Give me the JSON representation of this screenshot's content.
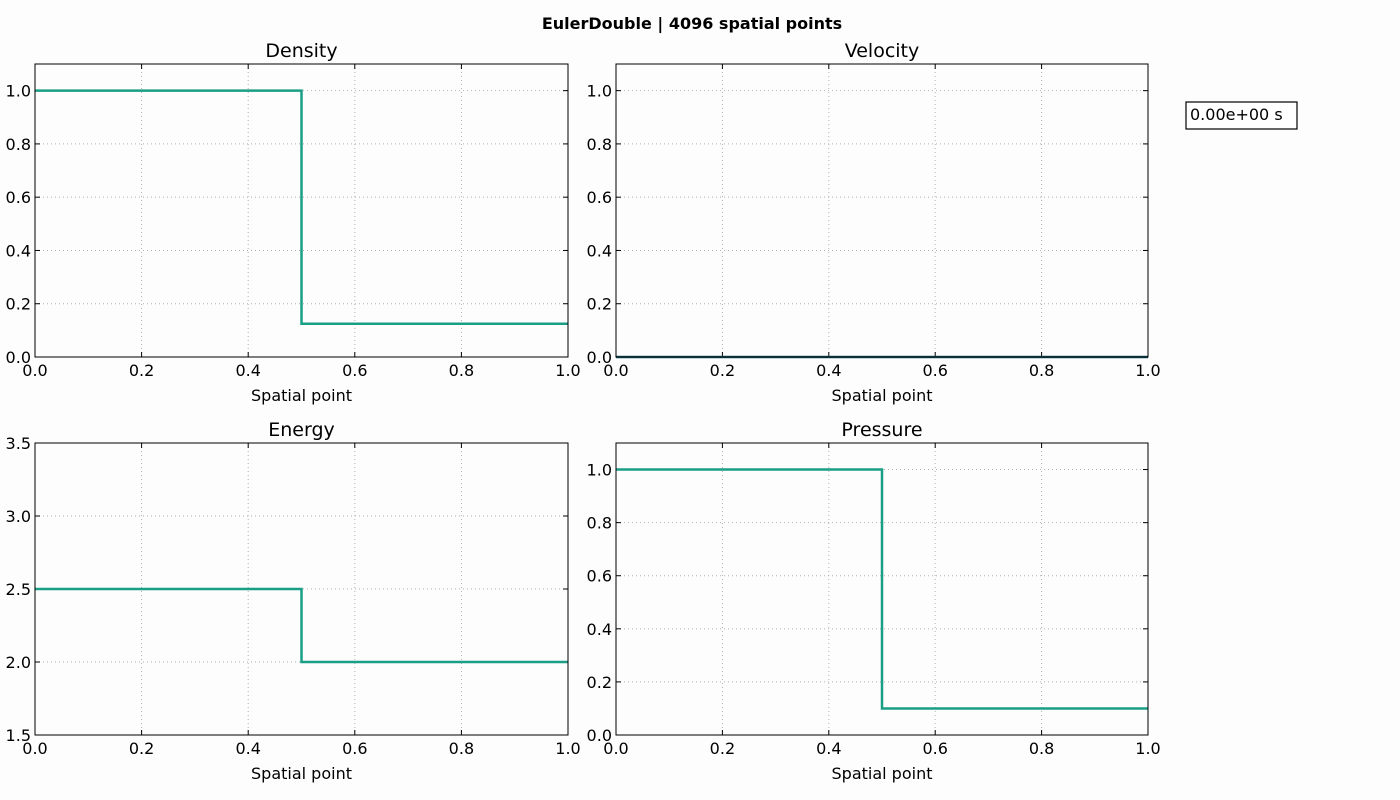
{
  "figure": {
    "title": "EulerDouble | 4096 spatial points",
    "time_label": "0.00e+00 s"
  },
  "colors": {
    "series": "#1a9e86",
    "velocity_series": "#1a5e6e"
  },
  "chart_data": [
    {
      "type": "line",
      "title": "Density",
      "xlabel": "Spatial point",
      "ylabel": "",
      "xlim": [
        0.0,
        1.0
      ],
      "ylim": [
        0.0,
        1.1
      ],
      "xticks": [
        "0.0",
        "0.2",
        "0.4",
        "0.6",
        "0.8",
        "1.0"
      ],
      "yticks": [
        "0.0",
        "0.2",
        "0.4",
        "0.6",
        "0.8",
        "1.0"
      ],
      "grid": true,
      "x": [
        0.0,
        0.5,
        0.5,
        1.0
      ],
      "y": [
        1.0,
        1.0,
        0.125,
        0.125
      ]
    },
    {
      "type": "line",
      "title": "Velocity",
      "xlabel": "Spatial point",
      "ylabel": "",
      "xlim": [
        0.0,
        1.0
      ],
      "ylim": [
        0.0,
        1.1
      ],
      "xticks": [
        "0.0",
        "0.2",
        "0.4",
        "0.6",
        "0.8",
        "1.0"
      ],
      "yticks": [
        "0.0",
        "0.2",
        "0.4",
        "0.6",
        "0.8",
        "1.0"
      ],
      "grid": true,
      "x": [
        0.0,
        1.0
      ],
      "y": [
        0.0,
        0.0
      ]
    },
    {
      "type": "line",
      "title": "Energy",
      "xlabel": "Spatial point",
      "ylabel": "",
      "xlim": [
        0.0,
        1.0
      ],
      "ylim": [
        1.5,
        3.5
      ],
      "xticks": [
        "0.0",
        "0.2",
        "0.4",
        "0.6",
        "0.8",
        "1.0"
      ],
      "yticks": [
        "1.5",
        "2.0",
        "2.5",
        "3.0",
        "3.5"
      ],
      "grid": true,
      "x": [
        0.0,
        0.5,
        0.5,
        1.0
      ],
      "y": [
        2.5,
        2.5,
        2.0,
        2.0
      ]
    },
    {
      "type": "line",
      "title": "Pressure",
      "xlabel": "Spatial point",
      "ylabel": "",
      "xlim": [
        0.0,
        1.0
      ],
      "ylim": [
        0.0,
        1.1
      ],
      "xticks": [
        "0.0",
        "0.2",
        "0.4",
        "0.6",
        "0.8",
        "1.0"
      ],
      "yticks": [
        "0.0",
        "0.2",
        "0.4",
        "0.6",
        "0.8",
        "1.0"
      ],
      "grid": true,
      "x": [
        0.0,
        0.5,
        0.5,
        1.0
      ],
      "y": [
        1.0,
        1.0,
        0.1,
        0.1
      ]
    }
  ]
}
